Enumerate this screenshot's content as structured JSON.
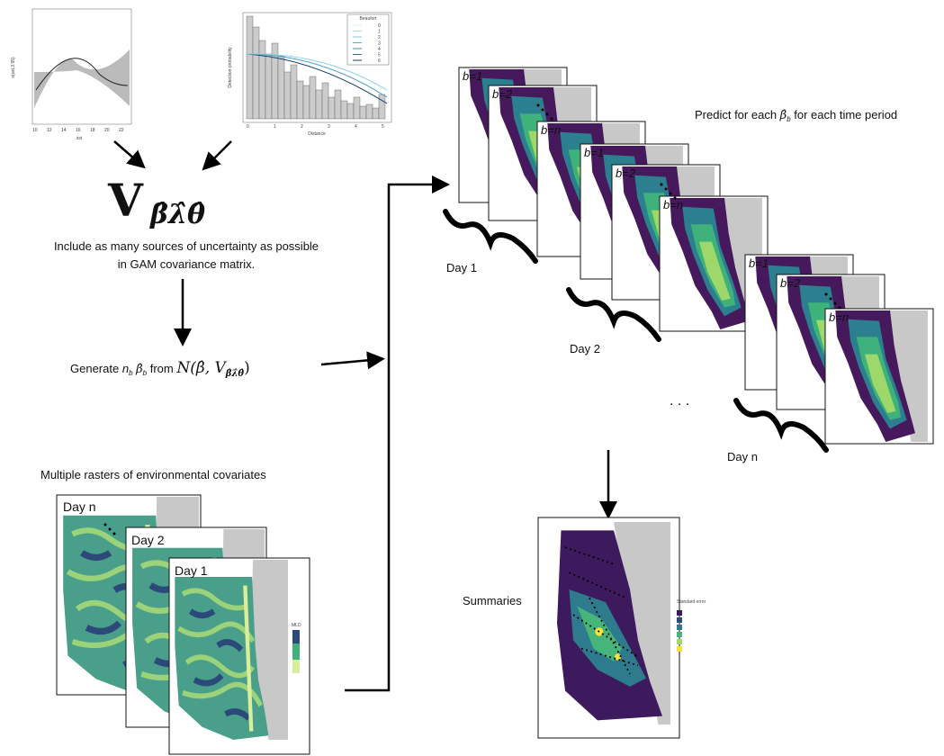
{
  "smooth_plot": {
    "x_label": "sst",
    "y_label": "s(sst,3.95)",
    "x_ticks": [
      "10",
      "12",
      "14",
      "16",
      "18",
      "20",
      "22"
    ]
  },
  "detection_plot": {
    "x_label": "Distance",
    "y_label": "Detection probability",
    "legend_title": "Beaufort",
    "legend_items": [
      "0",
      "1",
      "2",
      "3",
      "4",
      "5",
      "6"
    ],
    "x_ticks": [
      "0",
      "1",
      "2",
      "3",
      "4",
      "5"
    ]
  },
  "covariance": {
    "symbol": "V",
    "subscript": "β̂λ̂θ̂",
    "caption": [
      "Include as many sources of uncertainty as possible",
      "in GAM covariance matrix."
    ]
  },
  "generate": {
    "prefix": "Generate",
    "n": "n",
    "n_sub": "b",
    "beta": "β̂",
    "beta_sub": "b",
    "from": "from",
    "formula": "N(β̂, V",
    "formula_sub": "β̂λ̂θ̂",
    "close": ")"
  },
  "predict": {
    "prefix": "Predict for each",
    "beta": "β̂",
    "beta_sub": "b",
    "suffix": "for each time period"
  },
  "days": [
    {
      "label": "Day 1",
      "maps": [
        "b=1",
        "b=2",
        "b=n"
      ]
    },
    {
      "label": "Day 2",
      "maps": [
        "b=1",
        "b=2",
        "b=n"
      ]
    },
    {
      "label": "Day n",
      "maps": [
        "b=1",
        "b=2",
        "b=n"
      ]
    }
  ],
  "rasters": {
    "title": "Multiple rasters of environmental covariates",
    "panels": [
      "Day n",
      "Day 2",
      "Day 1"
    ],
    "legend_title": "MLD"
  },
  "summaries": {
    "label": "Summaries",
    "legend_title": "Standard error"
  }
}
